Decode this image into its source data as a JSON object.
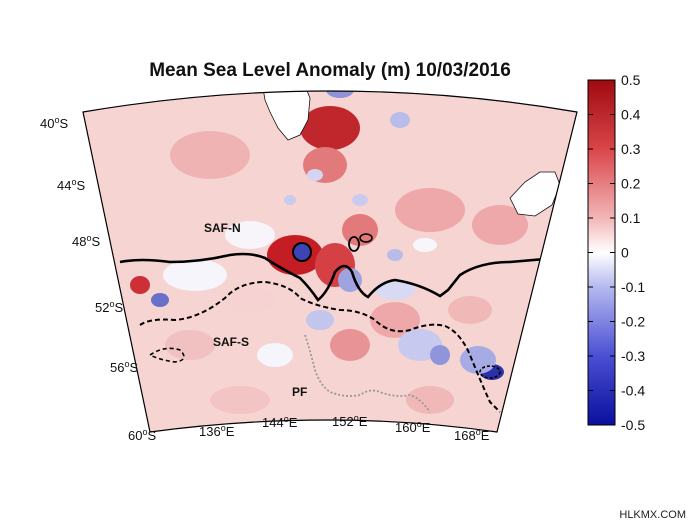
{
  "title": "Mean Sea Level Anomaly (m) 10/03/2016",
  "lat_labels": [
    {
      "deg": "40",
      "hemi": "S"
    },
    {
      "deg": "44",
      "hemi": "S"
    },
    {
      "deg": "48",
      "hemi": "S"
    },
    {
      "deg": "52",
      "hemi": "S"
    },
    {
      "deg": "56",
      "hemi": "S"
    },
    {
      "deg": "60",
      "hemi": "S"
    }
  ],
  "lon_labels": [
    {
      "deg": "136",
      "hemi": "E"
    },
    {
      "deg": "144",
      "hemi": "E"
    },
    {
      "deg": "152",
      "hemi": "E"
    },
    {
      "deg": "160",
      "hemi": "E"
    },
    {
      "deg": "168",
      "hemi": "E"
    }
  ],
  "fronts": {
    "saf_n": "SAF-N",
    "saf_s": "SAF-S",
    "pf": "PF"
  },
  "colorbar": {
    "ticks": [
      "0.5",
      "0.4",
      "0.3",
      "0.2",
      "0.1",
      "0",
      "-0.1",
      "-0.2",
      "-0.3",
      "-0.4",
      "-0.5"
    ],
    "max_color": "#9e0a0f",
    "mid_color": "#ffffff",
    "min_color": "#0a0f9e"
  },
  "map_colors": {
    "land": "#ffffff",
    "positive": "#e8999a",
    "negative": "#7f86d4"
  },
  "watermark": "HLKMX.COM"
}
